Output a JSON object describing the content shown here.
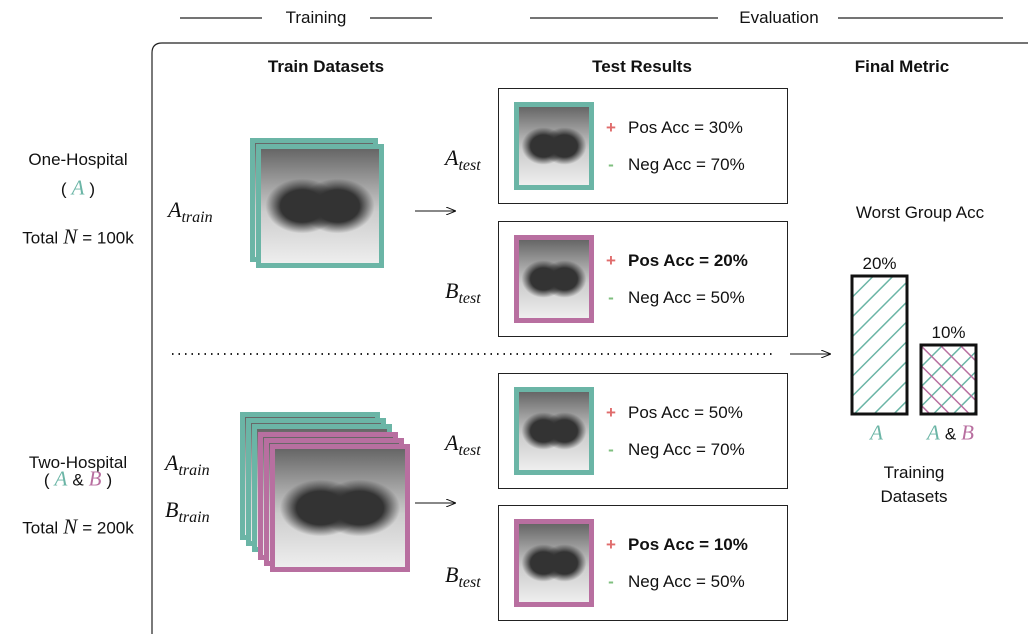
{
  "header": {
    "training": "Training",
    "evaluation": "Evaluation"
  },
  "columns": {
    "train": "Train Datasets",
    "test": "Test Results",
    "final": "Final Metric"
  },
  "rows": [
    {
      "name": "One-Hospital",
      "group": [
        "(",
        "A",
        ")"
      ],
      "total": [
        "Total",
        "N",
        "= 100k"
      ],
      "train_sets": [
        {
          "base": "A",
          "sub": "train"
        }
      ],
      "tests": [
        {
          "dataset": {
            "base": "A",
            "sub": "test"
          },
          "pos": {
            "sign": "+",
            "text": "Pos Acc = 30%",
            "bold": false
          },
          "neg": {
            "sign": "-",
            "text": "Neg Acc = 70%",
            "bold": false
          }
        },
        {
          "dataset": {
            "base": "B",
            "sub": "test"
          },
          "pos": {
            "sign": "+",
            "text": "Pos Acc = 20%",
            "bold": true
          },
          "neg": {
            "sign": "-",
            "text": "Neg Acc = 50%",
            "bold": false
          }
        }
      ]
    },
    {
      "name": "Two-Hospital",
      "group": [
        "(",
        "A",
        "&",
        "B",
        ")"
      ],
      "total": [
        "Total",
        "N",
        "= 200k"
      ],
      "train_sets": [
        {
          "base": "A",
          "sub": "train"
        },
        {
          "base": "B",
          "sub": "train"
        }
      ],
      "tests": [
        {
          "dataset": {
            "base": "A",
            "sub": "test"
          },
          "pos": {
            "sign": "+",
            "text": "Pos Acc = 50%",
            "bold": false
          },
          "neg": {
            "sign": "-",
            "text": "Neg Acc = 70%",
            "bold": false
          }
        },
        {
          "dataset": {
            "base": "B",
            "sub": "test"
          },
          "pos": {
            "sign": "+",
            "text": "Pos Acc = 10%",
            "bold": true
          },
          "neg": {
            "sign": "-",
            "text": "Neg Acc = 50%",
            "bold": false
          }
        }
      ]
    }
  ],
  "final": {
    "title": "Worst Group Acc",
    "values": [
      20,
      10
    ],
    "value_labels": [
      "20%",
      "10%"
    ],
    "categories": [
      [
        "A"
      ],
      [
        "A",
        "&",
        "B"
      ]
    ],
    "axis_label": "Training Datasets"
  }
}
